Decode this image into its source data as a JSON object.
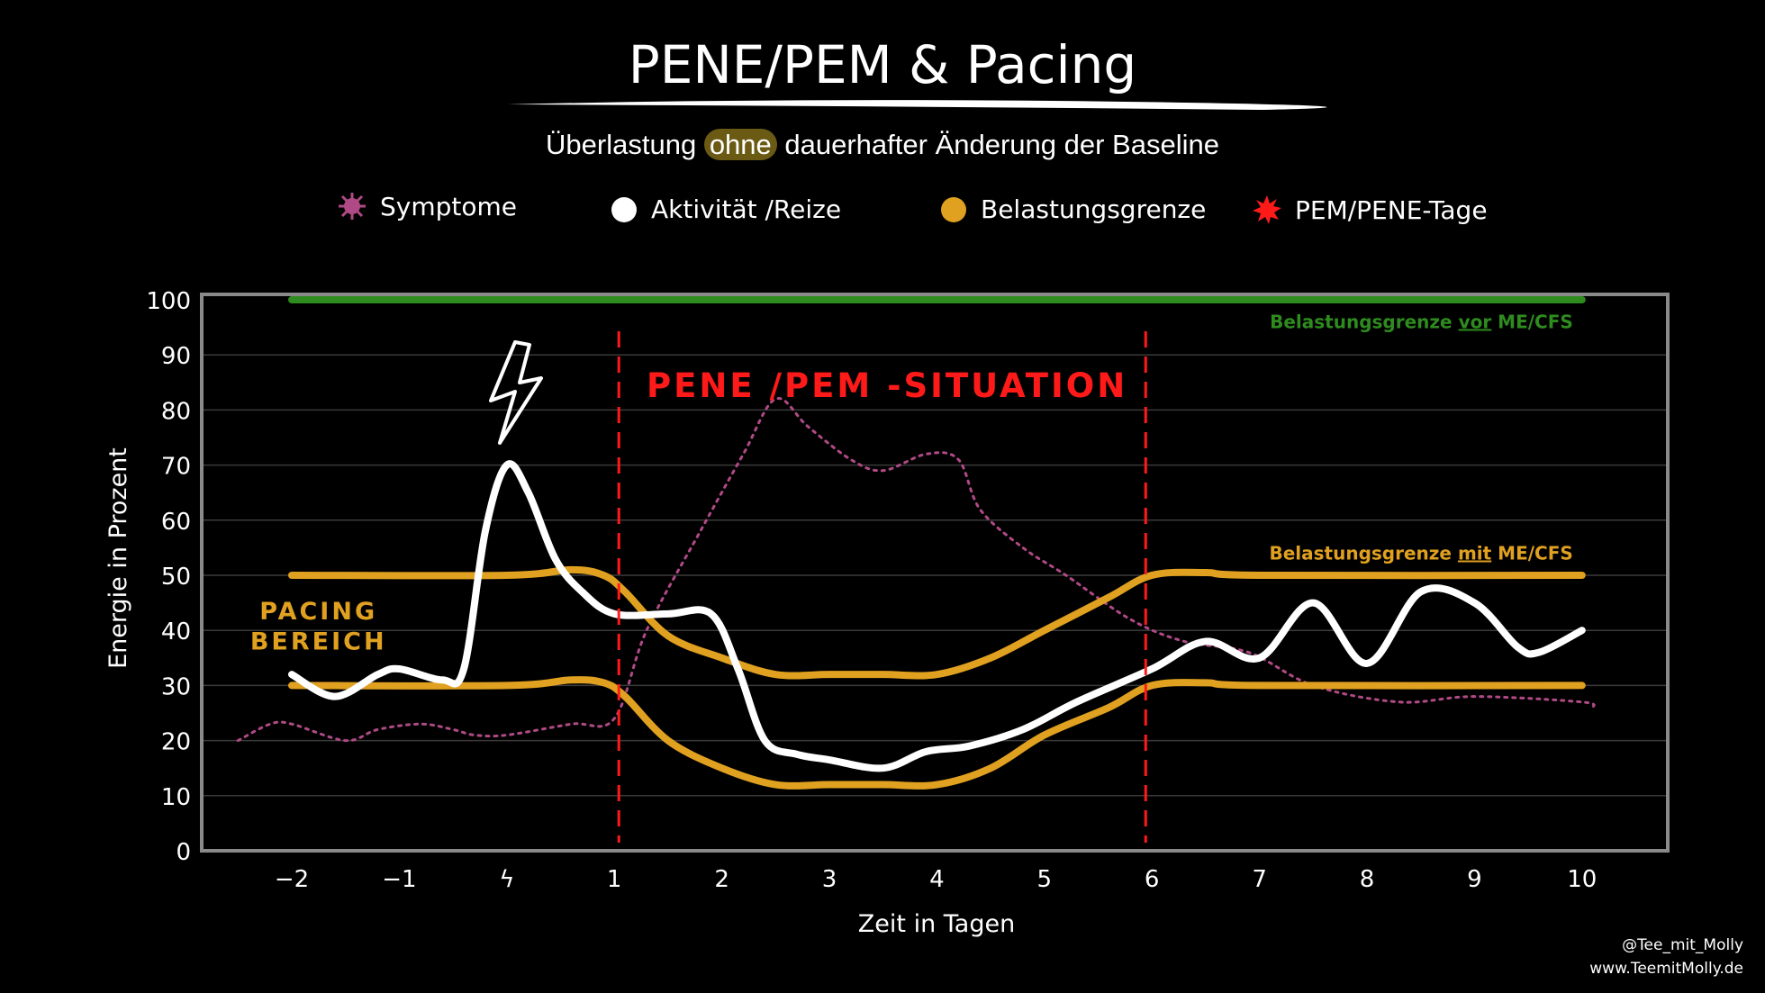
{
  "header": {
    "title": "PENE/PEM & Pacing",
    "subtitle_pre": "Überlastung ",
    "subtitle_highlight": "ohne",
    "subtitle_post": " dauerhafter Änderung der Baseline"
  },
  "legend": [
    {
      "label": "Symptome",
      "icon": "virus-icon",
      "color": "#b04a86"
    },
    {
      "label": "Aktivität /Reize",
      "icon": "circle-icon",
      "color": "#ffffff"
    },
    {
      "label": "Belastungsgrenze",
      "icon": "circle-icon",
      "color": "#e0a020"
    },
    {
      "label": "PEM/PENE-Tage",
      "icon": "burst-icon",
      "color": "#ff1a1a"
    }
  ],
  "colors": {
    "background": "#000000",
    "activity": "#ffffff",
    "limit": "#e0a020",
    "symptoms": "#b04a86",
    "baseline": "#2e8b1e",
    "pem": "#ff1a1a",
    "highlight": "#6b5a14"
  },
  "chart_data": {
    "type": "line",
    "xlabel": "Zeit in Tagen",
    "ylabel": "Energie in Prozent",
    "ylim": [
      0,
      100
    ],
    "xlim": [
      -2.8,
      10.8
    ],
    "x_ticks": [
      {
        "x": -2,
        "label": "−2"
      },
      {
        "x": -1,
        "label": "−1"
      },
      {
        "x": 0,
        "label": "ϟ"
      },
      {
        "x": 1,
        "label": "1"
      },
      {
        "x": 2,
        "label": "2"
      },
      {
        "x": 3,
        "label": "3"
      },
      {
        "x": 4,
        "label": "4"
      },
      {
        "x": 5,
        "label": "5"
      },
      {
        "x": 6,
        "label": "6"
      },
      {
        "x": 7,
        "label": "7"
      },
      {
        "x": 8,
        "label": "8"
      },
      {
        "x": 9,
        "label": "9"
      },
      {
        "x": 10,
        "label": "10"
      }
    ],
    "y_ticks": [
      0,
      10,
      20,
      30,
      40,
      50,
      60,
      70,
      80,
      90,
      100
    ],
    "grid": true,
    "series": [
      {
        "key": "baseline",
        "color": "#2e8b1e",
        "values": [
          [
            -2,
            100
          ],
          [
            10,
            100
          ]
        ]
      },
      {
        "key": "limit_upper",
        "color": "#e0a020",
        "values": [
          [
            -2,
            50
          ],
          [
            0,
            50
          ],
          [
            0.6,
            51
          ],
          [
            0.9,
            50
          ],
          [
            1.1,
            47
          ],
          [
            1.5,
            39
          ],
          [
            2,
            35
          ],
          [
            2.5,
            32
          ],
          [
            3,
            32
          ],
          [
            3.5,
            32
          ],
          [
            4,
            32
          ],
          [
            4.5,
            35
          ],
          [
            5,
            40
          ],
          [
            5.6,
            46
          ],
          [
            6,
            50
          ],
          [
            6.5,
            50.5
          ],
          [
            7,
            50
          ],
          [
            10,
            50
          ]
        ]
      },
      {
        "key": "limit_lower",
        "color": "#e0a020",
        "values": [
          [
            -2,
            30
          ],
          [
            0,
            30
          ],
          [
            0.6,
            31
          ],
          [
            0.9,
            30.5
          ],
          [
            1.1,
            28
          ],
          [
            1.5,
            20
          ],
          [
            2,
            15
          ],
          [
            2.5,
            12
          ],
          [
            3,
            12
          ],
          [
            3.5,
            12
          ],
          [
            4,
            12
          ],
          [
            4.5,
            15
          ],
          [
            5,
            21
          ],
          [
            5.6,
            26
          ],
          [
            6,
            30
          ],
          [
            6.5,
            30.5
          ],
          [
            7,
            30
          ],
          [
            10,
            30
          ]
        ]
      },
      {
        "key": "activity",
        "color": "#ffffff",
        "values": [
          [
            -2,
            32
          ],
          [
            -1.6,
            28
          ],
          [
            -1.2,
            32
          ],
          [
            -1,
            33
          ],
          [
            -0.6,
            31
          ],
          [
            -0.4,
            33
          ],
          [
            -0.2,
            58
          ],
          [
            0,
            70
          ],
          [
            0.2,
            65
          ],
          [
            0.45,
            53
          ],
          [
            0.7,
            47
          ],
          [
            1,
            43
          ],
          [
            1.5,
            43
          ],
          [
            1.9,
            43
          ],
          [
            2.15,
            33
          ],
          [
            2.4,
            20
          ],
          [
            2.7,
            17.5
          ],
          [
            3,
            16.5
          ],
          [
            3.5,
            15
          ],
          [
            3.9,
            18
          ],
          [
            4.3,
            19
          ],
          [
            4.8,
            22
          ],
          [
            5.3,
            27
          ],
          [
            6,
            33
          ],
          [
            6.5,
            38
          ],
          [
            7,
            35
          ],
          [
            7.5,
            45
          ],
          [
            8,
            34
          ],
          [
            8.5,
            47
          ],
          [
            9,
            45
          ],
          [
            9.4,
            37
          ],
          [
            9.6,
            36
          ],
          [
            10,
            40
          ]
        ]
      },
      {
        "key": "symptoms",
        "color": "#b04a86",
        "values": [
          [
            -2.5,
            20
          ],
          [
            -2.2,
            23
          ],
          [
            -2,
            23
          ],
          [
            -1.5,
            20
          ],
          [
            -1.2,
            22
          ],
          [
            -0.8,
            23
          ],
          [
            -0.5,
            22
          ],
          [
            -0.3,
            21
          ],
          [
            0,
            21
          ],
          [
            0.6,
            23
          ],
          [
            1,
            24
          ],
          [
            1.3,
            40
          ],
          [
            1.8,
            58
          ],
          [
            2.2,
            72
          ],
          [
            2.5,
            82
          ],
          [
            2.8,
            77
          ],
          [
            3.2,
            71
          ],
          [
            3.5,
            69
          ],
          [
            3.9,
            72
          ],
          [
            4.2,
            71
          ],
          [
            4.4,
            62
          ],
          [
            4.8,
            55
          ],
          [
            5.2,
            50
          ],
          [
            5.8,
            42
          ],
          [
            6.3,
            38
          ],
          [
            6.9,
            36
          ],
          [
            7.5,
            30
          ],
          [
            8.3,
            27
          ],
          [
            9,
            28
          ],
          [
            10,
            27
          ],
          [
            10.1,
            26
          ]
        ]
      }
    ],
    "pem_markers": [
      1,
      5.9
    ],
    "annotations": [
      {
        "key": "baseline_label",
        "text_pre": "Belastungsgrenze ",
        "text_u": "vor",
        "text_post": " ME/CFS",
        "x": 10,
        "y": 96
      },
      {
        "key": "limit_label",
        "text_pre": "Belastungsgrenze ",
        "text_u": "mit",
        "text_post": " ME/CFS",
        "x": 10,
        "y": 54
      },
      {
        "key": "pem_label",
        "text": "PENE /PEM -SITUATION",
        "x": 1.3,
        "y": 85
      },
      {
        "key": "pacing_line1",
        "text": "PACING",
        "x": -1.5,
        "y": 43.5
      },
      {
        "key": "pacing_line2",
        "text": "BEREICH",
        "x": -1.5,
        "y": 38
      }
    ]
  },
  "credit": {
    "line1": "@Tee_mit_Molly",
    "line2": "www.TeemitMolly.de"
  }
}
